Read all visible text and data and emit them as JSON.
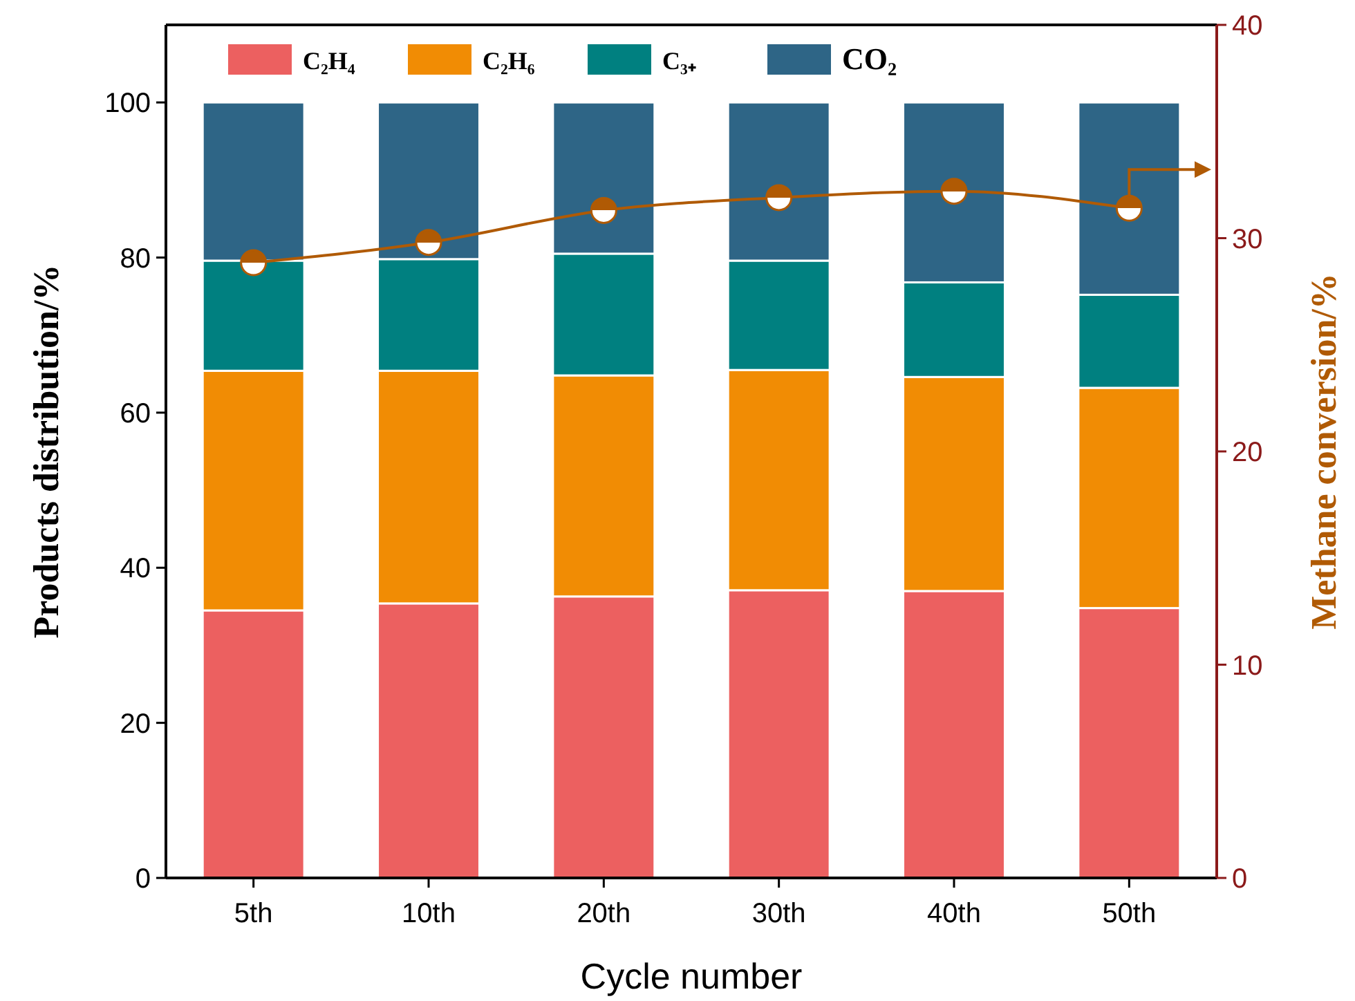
{
  "chart_data": {
    "type": "bar",
    "stacked": true,
    "categories": [
      "5th",
      "10th",
      "20th",
      "30th",
      "40th",
      "50th"
    ],
    "xlabel": "Cycle number",
    "ylabel": "Products distribution/%",
    "y2label": "Methane conversion/%",
    "ylim": [
      0,
      110
    ],
    "yticks": [
      0,
      20,
      40,
      60,
      80,
      100
    ],
    "y2lim": [
      0,
      40
    ],
    "y2ticks": [
      0,
      10,
      20,
      30,
      40
    ],
    "legend": "top",
    "grid": false,
    "series": [
      {
        "name": "C₂H₄",
        "color": "#ec6060",
        "values": [
          34.5,
          35.4,
          36.3,
          37.1,
          37.0,
          34.8
        ]
      },
      {
        "name": "C₂H₆",
        "color": "#f18c04",
        "values": [
          30.9,
          30.0,
          28.5,
          28.4,
          27.6,
          28.4
        ]
      },
      {
        "name": "C₃₊",
        "color": "#008080",
        "values": [
          14.2,
          14.4,
          15.7,
          14.1,
          12.2,
          12.0
        ]
      },
      {
        "name": "CO₂",
        "color": "#2e6586",
        "values": [
          20.4,
          20.2,
          19.5,
          20.4,
          23.2,
          24.8
        ]
      },
      {
        "type": "line",
        "axis": "y2",
        "color": "#b05a04",
        "marker": "circle",
        "line_style": "solid",
        "values": [
          28.85,
          29.8,
          31.3,
          31.9,
          32.2,
          31.4
        ]
      }
    ]
  }
}
